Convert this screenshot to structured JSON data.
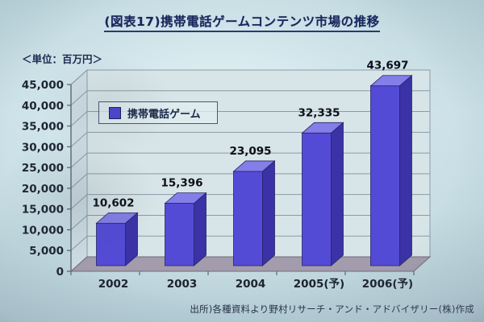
{
  "slide": {
    "title": "(図表17)携帯電話ゲームコンテンツ市場の推移",
    "unit_label": "＜単位：百万円＞",
    "source": "出所)各種資料より野村リサーチ・アンド・アドバイザリー(株)作成"
  },
  "legend": {
    "label": "携帯電話ゲーム",
    "marker_color": "#4a44d0"
  },
  "chart_data": {
    "type": "bar",
    "style": "3d-column",
    "title": "携帯電話ゲームコンテンツ市場の推移",
    "unit": "百万円",
    "categories": [
      "2002",
      "2003",
      "2004",
      "2005(予)",
      "2006(予)"
    ],
    "series": [
      {
        "name": "携帯電話ゲーム",
        "values": [
          10602,
          15396,
          23095,
          32335,
          43697
        ]
      }
    ],
    "data_labels": [
      "10,602",
      "15,396",
      "23,095",
      "32,335",
      "43,697"
    ],
    "xlabel": "",
    "ylabel": "百万円",
    "ylim": [
      0,
      45000
    ],
    "y_tick_step": 5000,
    "y_tick_labels": [
      "0",
      "5,000",
      "10,000",
      "15,000",
      "20,000",
      "25,000",
      "30,000",
      "35,000",
      "40,000",
      "45,000"
    ],
    "grid": true,
    "legend_position": "upper-left-inside",
    "colors": {
      "bar_front": "#534bd6",
      "bar_side": "#3a32a6",
      "bar_top": "#837ee8",
      "bar_outline": "#272366",
      "wall": "#d7e5e8",
      "left_wall": "#cddde2",
      "floor": "#a29cac",
      "gridline": "#8c9aa8",
      "axis": "#5d6878",
      "tick_text": "#1d2433",
      "value_text": "#0c0e1a"
    }
  }
}
